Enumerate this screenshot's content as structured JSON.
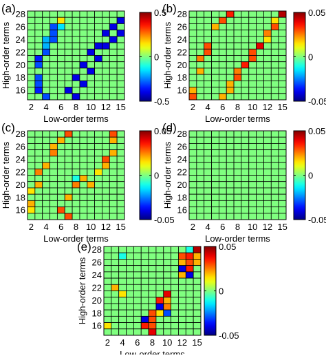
{
  "chart_data": [
    {
      "panel_label": "(a)",
      "type": "heatmap",
      "xlabel": "Low-order terms",
      "ylabel": "High-order terms",
      "x_ticks": [
        "2",
        "4",
        "6",
        "8",
        "10",
        "12",
        "15"
      ],
      "y_ticks": [
        "28",
        "26",
        "24",
        "22",
        "20",
        "18",
        "16"
      ],
      "colorbar_ticks": [
        "0.5",
        "0",
        "-0.5"
      ],
      "vmin": -0.5,
      "vmax": 0.5,
      "colormap": "jet",
      "grid": "14x13",
      "background_value": 0,
      "cells": [
        {
          "col": 4,
          "row": 1,
          "value": 0.15
        },
        {
          "col": 3,
          "row": 2,
          "value": -0.3
        },
        {
          "col": 4,
          "row": 2,
          "value": -0.15
        },
        {
          "col": 3,
          "row": 3,
          "value": -0.3
        },
        {
          "col": 2,
          "row": 4,
          "value": -0.2
        },
        {
          "col": 3,
          "row": 4,
          "value": -0.3
        },
        {
          "col": 2,
          "row": 5,
          "value": -0.2
        },
        {
          "col": 2,
          "row": 6,
          "value": -0.3
        },
        {
          "col": 1,
          "row": 7,
          "value": -0.35
        },
        {
          "col": 1,
          "row": 8,
          "value": -0.3
        },
        {
          "col": 1,
          "row": 10,
          "value": -0.3
        },
        {
          "col": 1,
          "row": 11,
          "value": -0.3
        },
        {
          "col": 1,
          "row": 12,
          "value": -0.35
        },
        {
          "col": 2,
          "row": 13,
          "value": -0.3
        },
        {
          "col": 12,
          "row": 1,
          "value": -0.4
        },
        {
          "col": 11,
          "row": 2,
          "value": -0.4
        },
        {
          "col": 12,
          "row": 3,
          "value": -0.4
        },
        {
          "col": 10,
          "row": 3,
          "value": -0.4
        },
        {
          "col": 11,
          "row": 4,
          "value": -0.4
        },
        {
          "col": 9,
          "row": 5,
          "value": -0.4
        },
        {
          "col": 10,
          "row": 5,
          "value": -0.4
        },
        {
          "col": 8,
          "row": 6,
          "value": -0.4
        },
        {
          "col": 9,
          "row": 7,
          "value": -0.4
        },
        {
          "col": 7,
          "row": 8,
          "value": -0.4
        },
        {
          "col": 8,
          "row": 9,
          "value": -0.4
        },
        {
          "col": 6,
          "row": 10,
          "value": -0.4
        },
        {
          "col": 7,
          "row": 11,
          "value": -0.4
        },
        {
          "col": 5,
          "row": 12,
          "value": -0.4
        },
        {
          "col": 6,
          "row": 13,
          "value": -0.4
        }
      ]
    },
    {
      "panel_label": "(b)",
      "type": "heatmap",
      "xlabel": "Low-order terms",
      "ylabel": "High-order terms",
      "x_ticks": [
        "2",
        "4",
        "6",
        "8",
        "10",
        "12",
        "15"
      ],
      "y_ticks": [
        "28",
        "26",
        "24",
        "22",
        "20",
        "18",
        "16"
      ],
      "colorbar_ticks": [
        "0.05",
        "0",
        "-0.05"
      ],
      "vmin": -0.05,
      "vmax": 0.05,
      "colormap": "jet",
      "grid": "14x13",
      "background_value": 0,
      "cells": [
        {
          "col": 5,
          "row": 0,
          "value": 0.035
        },
        {
          "col": 12,
          "row": 0,
          "value": 0.045
        },
        {
          "col": 4,
          "row": 1,
          "value": 0.03
        },
        {
          "col": 3,
          "row": 2,
          "value": 0.02
        },
        {
          "col": 11,
          "row": 1,
          "value": 0.015
        },
        {
          "col": 11,
          "row": 2,
          "value": 0.03
        },
        {
          "col": 10,
          "row": 3,
          "value": 0.025
        },
        {
          "col": 10,
          "row": 4,
          "value": 0.015
        },
        {
          "col": 2,
          "row": 5,
          "value": 0.03
        },
        {
          "col": 9,
          "row": 5,
          "value": 0.04
        },
        {
          "col": 2,
          "row": 6,
          "value": 0.03
        },
        {
          "col": 8,
          "row": 6,
          "value": 0.03
        },
        {
          "col": 1,
          "row": 7,
          "value": 0.025
        },
        {
          "col": 8,
          "row": 7,
          "value": 0.03
        },
        {
          "col": 7,
          "row": 8,
          "value": 0.035
        },
        {
          "col": 1,
          "row": 9,
          "value": 0.02
        },
        {
          "col": 6,
          "row": 9,
          "value": 0.025
        },
        {
          "col": 6,
          "row": 10,
          "value": 0.03
        },
        {
          "col": 5,
          "row": 11,
          "value": 0.02
        },
        {
          "col": 5,
          "row": 12,
          "value": 0.02
        },
        {
          "col": 0,
          "row": 12,
          "value": 0.02
        },
        {
          "col": 4,
          "row": 13,
          "value": 0.02
        },
        {
          "col": 0,
          "row": 13,
          "value": 0.03
        }
      ]
    },
    {
      "panel_label": "(c)",
      "type": "heatmap",
      "xlabel": "Low-order terms",
      "ylabel": "High-order terms",
      "x_ticks": [
        "2",
        "4",
        "6",
        "8",
        "10",
        "12",
        "15"
      ],
      "y_ticks": [
        "28",
        "26",
        "24",
        "22",
        "20",
        "18",
        "16"
      ],
      "colorbar_ticks": [
        "0.05",
        "0",
        "-0.05"
      ],
      "vmin": -0.05,
      "vmax": 0.05,
      "colormap": "jet",
      "grid": "14x13",
      "background_value": 0,
      "cells": [
        {
          "col": 5,
          "row": 0,
          "value": 0.03
        },
        {
          "col": 11,
          "row": 0,
          "value": 0.03
        },
        {
          "col": 4,
          "row": 1,
          "value": 0.02
        },
        {
          "col": 11,
          "row": 1,
          "value": 0.02
        },
        {
          "col": 3,
          "row": 2,
          "value": 0.02
        },
        {
          "col": 3,
          "row": 3,
          "value": 0.025
        },
        {
          "col": 11,
          "row": 3,
          "value": 0.02
        },
        {
          "col": 10,
          "row": 4,
          "value": 0.03
        },
        {
          "col": 2,
          "row": 5,
          "value": 0.02
        },
        {
          "col": 10,
          "row": 5,
          "value": 0.02
        },
        {
          "col": 1,
          "row": 6,
          "value": 0.025
        },
        {
          "col": 9,
          "row": 6,
          "value": 0.015
        },
        {
          "col": 6,
          "row": 7,
          "value": -0.01
        },
        {
          "col": 7,
          "row": 7,
          "value": 0.02
        },
        {
          "col": 1,
          "row": 8,
          "value": 0.02
        },
        {
          "col": 6,
          "row": 8,
          "value": 0.025
        },
        {
          "col": 8,
          "row": 8,
          "value": 0.02
        },
        {
          "col": 0,
          "row": 9,
          "value": 0.015
        },
        {
          "col": 5,
          "row": 10,
          "value": 0.02
        },
        {
          "col": 0,
          "row": 11,
          "value": 0.02
        },
        {
          "col": 4,
          "row": 12,
          "value": 0.03
        },
        {
          "col": 0,
          "row": 12,
          "value": 0.015
        },
        {
          "col": 5,
          "row": 13,
          "value": 0.03
        }
      ]
    },
    {
      "panel_label": "(d)",
      "type": "heatmap",
      "xlabel": "Low-order terms",
      "ylabel": "High-order terms",
      "x_ticks": [
        "2",
        "4",
        "6",
        "8",
        "10",
        "12",
        "15"
      ],
      "y_ticks": [
        "28",
        "26",
        "24",
        "22",
        "20",
        "18",
        "16"
      ],
      "colorbar_ticks": [
        "0.05",
        "0",
        "-0.05"
      ],
      "vmin": -0.05,
      "vmax": 0.05,
      "colormap": "jet",
      "grid": "14x13",
      "background_value": 0,
      "cells": []
    },
    {
      "panel_label": "(e)",
      "type": "heatmap",
      "xlabel": "Low-order terms",
      "ylabel": "High-order terms",
      "x_ticks": [
        "2",
        "4",
        "6",
        "8",
        "10",
        "12",
        "15"
      ],
      "y_ticks": [
        "28",
        "26",
        "24",
        "22",
        "20",
        "18",
        "16"
      ],
      "colorbar_ticks": [
        "0.05",
        "0",
        "-0.05"
      ],
      "vmin": -0.05,
      "vmax": 0.05,
      "colormap": "jet",
      "grid": "14x13",
      "background_value": 0,
      "cells": [
        {
          "col": 12,
          "row": 0,
          "value": 0.045
        },
        {
          "col": 11,
          "row": 0,
          "value": -0.01
        },
        {
          "col": 11,
          "row": 1,
          "value": 0.035
        },
        {
          "col": 12,
          "row": 1,
          "value": 0.02
        },
        {
          "col": 10,
          "row": 1,
          "value": 0.03
        },
        {
          "col": 2,
          "row": 1,
          "value": -0.01
        },
        {
          "col": 10,
          "row": 2,
          "value": 0.02
        },
        {
          "col": 11,
          "row": 2,
          "value": 0.03
        },
        {
          "col": 12,
          "row": 2,
          "value": 0.02
        },
        {
          "col": 10,
          "row": 3,
          "value": -0.04
        },
        {
          "col": 11,
          "row": 3,
          "value": 0.035
        },
        {
          "col": 10,
          "row": 4,
          "value": 0.02
        },
        {
          "col": 11,
          "row": 4,
          "value": -0.04
        },
        {
          "col": 1,
          "row": 6,
          "value": 0.02
        },
        {
          "col": 2,
          "row": 7,
          "value": 0.015
        },
        {
          "col": 8,
          "row": 7,
          "value": 0.04
        },
        {
          "col": 7,
          "row": 8,
          "value": 0.035
        },
        {
          "col": 8,
          "row": 8,
          "value": 0.02
        },
        {
          "col": 7,
          "row": 9,
          "value": -0.04
        },
        {
          "col": 8,
          "row": 9,
          "value": 0.025
        },
        {
          "col": 6,
          "row": 10,
          "value": 0.03
        },
        {
          "col": 7,
          "row": 10,
          "value": 0.015
        },
        {
          "col": 8,
          "row": 10,
          "value": -0.03
        },
        {
          "col": 5,
          "row": 11,
          "value": -0.04
        },
        {
          "col": 6,
          "row": 11,
          "value": 0.03
        },
        {
          "col": 5,
          "row": 12,
          "value": 0.035
        },
        {
          "col": 0,
          "row": 12,
          "value": 0.015
        },
        {
          "col": 6,
          "row": 12,
          "value": 0.03
        },
        {
          "col": 6,
          "row": 13,
          "value": 0.04
        }
      ]
    }
  ]
}
